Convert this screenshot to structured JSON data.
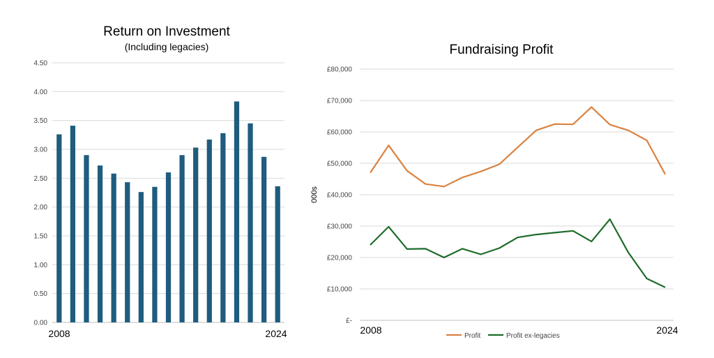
{
  "colors": {
    "bar": "#1f5c7d",
    "profit": "#d98240",
    "profit_ex": "#1e6b2a",
    "grid": "#d9d9d9",
    "tick": "#444444"
  },
  "chart_data": [
    {
      "type": "bar",
      "title": "Return on Investment",
      "subtitle": "(Including legacies)",
      "x_start_label": "2008",
      "x_end_label": "2024",
      "ylim": [
        0,
        4.5
      ],
      "y_ticks": [
        "0.00",
        "0.50",
        "1.00",
        "1.50",
        "2.00",
        "2.50",
        "3.00",
        "3.50",
        "4.00",
        "4.50"
      ],
      "values": [
        3.26,
        3.41,
        2.9,
        2.72,
        2.58,
        2.43,
        2.26,
        2.35,
        2.6,
        2.9,
        3.03,
        3.17,
        3.28,
        3.83,
        3.45,
        2.87,
        2.36
      ],
      "grid": true
    },
    {
      "type": "line",
      "title": "Fundraising Profit",
      "ylabel": "000s",
      "x_start_label": "2008",
      "x_end_label": "2024",
      "ylim": [
        0,
        80000
      ],
      "y_ticks": [
        "£-",
        "£10,000",
        "£20,000",
        "£30,000",
        "£40,000",
        "£50,000",
        "£60,000",
        "£70,000",
        "£80,000"
      ],
      "grid": true,
      "legend_position": "bottom",
      "series": [
        {
          "name": "Profit",
          "values": [
            47000,
            55700,
            47600,
            43400,
            42600,
            45500,
            47400,
            49700,
            55100,
            60500,
            62500,
            62400,
            67900,
            62300,
            60500,
            57300,
            46500
          ]
        },
        {
          "name": "Profit ex-legacies",
          "values": [
            24000,
            29800,
            22700,
            22800,
            20000,
            22800,
            21000,
            23000,
            26400,
            27300,
            27900,
            28500,
            25100,
            32200,
            21600,
            13300,
            10500
          ]
        }
      ]
    }
  ]
}
